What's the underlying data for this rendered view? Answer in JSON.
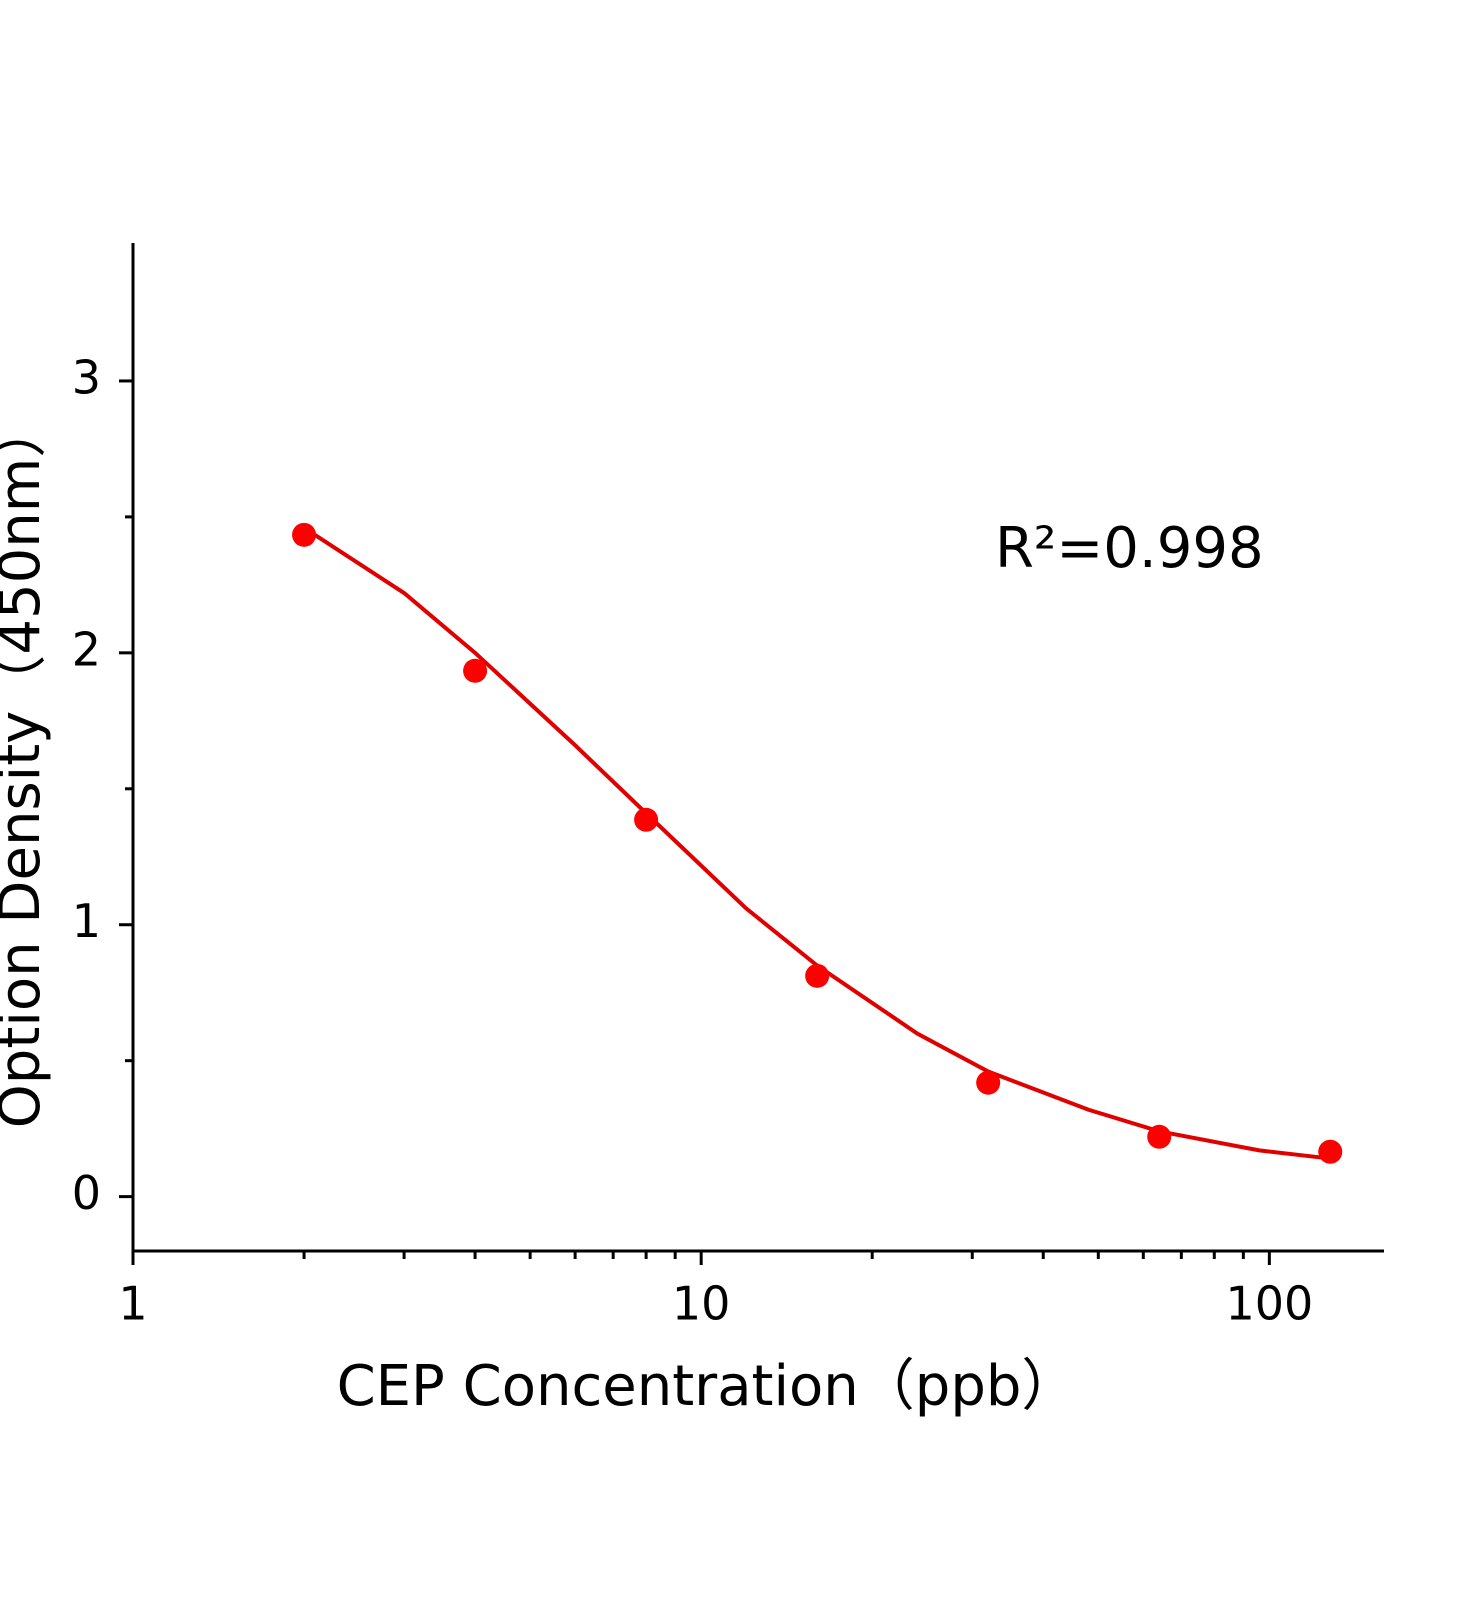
{
  "chart_data": {
    "type": "scatter",
    "annotation": "R²=0.998",
    "x_label": "CEP Concentration（ppb）",
    "y_label": "Option Density（450nm）",
    "xscale": "log",
    "xlim": [
      1,
      158.5
    ],
    "xticks": [
      1,
      10,
      100
    ],
    "xminorticks": [
      2,
      3,
      4,
      5,
      6,
      7,
      8,
      9,
      20,
      30,
      40,
      50,
      60,
      70,
      80,
      90
    ],
    "ylim": [
      -0.2,
      3.5
    ],
    "yticks": [
      0,
      1,
      2,
      3
    ],
    "yminorticks": [
      0.5,
      1.5,
      2.5
    ],
    "series": [
      {
        "mode": "markers",
        "color": "#ff0000",
        "x": [
          2,
          4,
          8,
          16,
          32,
          64,
          128
        ],
        "values": [
          2.434,
          1.934,
          1.386,
          0.812,
          0.419,
          0.22,
          0.165
        ]
      },
      {
        "mode": "line",
        "color": "#e00000",
        "x": [
          2,
          3,
          4,
          6,
          8,
          12,
          16,
          24,
          32,
          48,
          64,
          96,
          128
        ],
        "values": [
          2.46,
          2.22,
          2.0,
          1.66,
          1.41,
          1.06,
          0.85,
          0.6,
          0.46,
          0.32,
          0.24,
          0.17,
          0.14
        ]
      }
    ]
  }
}
